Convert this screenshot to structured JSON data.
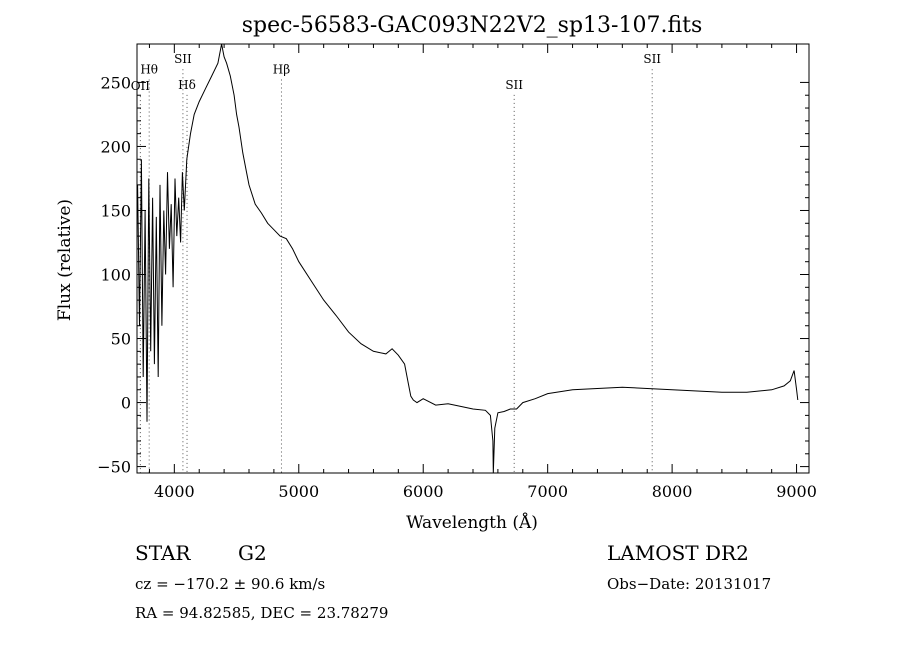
{
  "chart_data": {
    "type": "line",
    "title": "spec-56583-GAC093N22V2_sp13-107.fits",
    "xlabel": "Wavelength (Å)",
    "ylabel": "Flux (relative)",
    "xlim": [
      3700,
      9100
    ],
    "ylim": [
      -55,
      280
    ],
    "xticks": [
      4000,
      5000,
      6000,
      7000,
      8000,
      9000
    ],
    "yticks": [
      -50,
      0,
      50,
      100,
      150,
      200,
      250
    ],
    "grid": false,
    "legend": "none",
    "line_color": "#000000",
    "series": [
      {
        "x": [
          3705,
          3720,
          3735,
          3750,
          3765,
          3780,
          3795,
          3810,
          3825,
          3840,
          3855,
          3870,
          3885,
          3900,
          3915,
          3930,
          3945,
          3960,
          3975,
          3990,
          4005,
          4020,
          4035,
          4050,
          4065,
          4080,
          4100,
          4130,
          4160,
          4200,
          4250,
          4300,
          4350,
          4380,
          4400,
          4420,
          4450,
          4480,
          4500,
          4520,
          4550,
          4580,
          4600,
          4650,
          4700,
          4750,
          4800,
          4850,
          4900,
          4950,
          5000,
          5100,
          5200,
          5300,
          5400,
          5500,
          5600,
          5700,
          5750,
          5800,
          5850,
          5880,
          5900,
          5920,
          5950,
          6000,
          6100,
          6200,
          6300,
          6400,
          6500,
          6540,
          6560,
          6563,
          6575,
          6600,
          6650,
          6700,
          6750,
          6800,
          6900,
          7000,
          7200,
          7400,
          7600,
          7800,
          8000,
          8200,
          8400,
          8600,
          8800,
          8900,
          8950,
          8980,
          9000,
          9010
        ],
        "values": [
          170,
          60,
          190,
          20,
          150,
          -15,
          175,
          40,
          160,
          30,
          145,
          20,
          170,
          60,
          150,
          100,
          180,
          120,
          155,
          90,
          175,
          130,
          160,
          125,
          180,
          150,
          190,
          210,
          225,
          235,
          245,
          255,
          265,
          280,
          270,
          265,
          255,
          240,
          225,
          215,
          195,
          180,
          170,
          155,
          148,
          140,
          135,
          130,
          128,
          120,
          110,
          95,
          80,
          68,
          55,
          46,
          40,
          38,
          42,
          37,
          30,
          15,
          5,
          2,
          0,
          3,
          -2,
          -1,
          -3,
          -5,
          -6,
          -10,
          -30,
          -55,
          -20,
          -8,
          -7,
          -5,
          -5,
          0,
          3,
          7,
          10,
          11,
          12,
          11,
          10,
          9,
          8,
          8,
          10,
          13,
          17,
          25,
          10,
          2
        ]
      }
    ],
    "line_markers": [
      {
        "label": "OII",
        "x": 3727,
        "label_y": 244
      },
      {
        "label": "Hθ",
        "x": 3798,
        "label_y": 257
      },
      {
        "label": "SII",
        "x": 4069,
        "label_y": 265
      },
      {
        "label": "Hδ",
        "x": 4102,
        "label_y": 245
      },
      {
        "label": "Hβ",
        "x": 4861,
        "label_y": 257
      },
      {
        "label": "SII",
        "x": 6731,
        "label_y": 245
      },
      {
        "label": "SII",
        "x": 7840,
        "label_y": 265
      }
    ]
  },
  "info": {
    "class": "STAR",
    "subclass": "G2",
    "survey": "LAMOST DR2",
    "cz": "cz = −170.2 ± 90.6 km/s",
    "obs_date": "Obs−Date: 20131017",
    "radec": "RA =  94.82585, DEC =  23.78279"
  }
}
